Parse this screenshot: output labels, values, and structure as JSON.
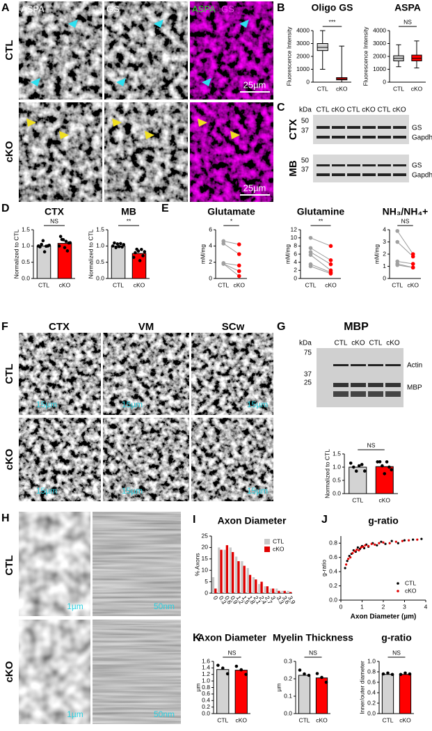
{
  "panels": {
    "A": {
      "label": "A",
      "rows": [
        "CTL",
        "cKO"
      ],
      "channels": [
        "ASPA",
        "GS"
      ],
      "merge": [
        "ASPA",
        "GS"
      ],
      "scale_bars": [
        "25µm",
        "25µm"
      ]
    },
    "B": {
      "label": "B",
      "charts": [
        {
          "type": "box",
          "title": "Oligo GS",
          "y_label": "Fluorescence Intensity",
          "categories": [
            "CTL",
            "cKO"
          ],
          "ylim": [
            0,
            4000
          ],
          "yticks": [
            0,
            1000,
            2000,
            3000,
            4000
          ],
          "significance": "***",
          "series": [
            {
              "color": "#d3d3d3",
              "min": 1000,
              "q1": 2450,
              "median": 2700,
              "q3": 3000,
              "max": 4000
            },
            {
              "color": "#ff0000",
              "min": 0,
              "q1": 180,
              "median": 250,
              "q3": 350,
              "max": 2800
            }
          ]
        },
        {
          "type": "box",
          "title": "ASPA",
          "y_label": "Fluorescence Intensity",
          "categories": [
            "CTL",
            "cKO"
          ],
          "ylim": [
            0,
            4000
          ],
          "yticks": [
            0,
            1000,
            2000,
            3000,
            4000
          ],
          "significance": "NS",
          "series": [
            {
              "color": "#d3d3d3",
              "min": 1200,
              "q1": 1650,
              "median": 1850,
              "q3": 2050,
              "max": 2900
            },
            {
              "color": "#ff0000",
              "min": 1100,
              "q1": 1650,
              "median": 1850,
              "q3": 2100,
              "max": 3200
            }
          ]
        }
      ]
    },
    "C": {
      "label": "C",
      "unit": "kDa",
      "lanes": [
        "CTL",
        "cKO",
        "CTL",
        "cKO",
        "CTL",
        "cKO"
      ],
      "blots": [
        {
          "region": "CTX",
          "markers": [
            "50",
            "37"
          ],
          "bands": [
            "GS",
            "Gapdh"
          ]
        },
        {
          "region": "MB",
          "markers": [
            "50",
            "37"
          ],
          "bands": [
            "GS",
            "Gapdh"
          ]
        }
      ]
    },
    "D": {
      "label": "D",
      "charts": [
        {
          "type": "bar",
          "title": "CTX",
          "y_label": "Normalized to CTL",
          "categories": [
            "CTL",
            "cKO"
          ],
          "colors": [
            "#d3d3d3",
            "#ff0000"
          ],
          "values": [
            1.0,
            1.08
          ],
          "significance": "NS",
          "points": [
            [
              1.0,
              0.93,
              1.05,
              1.12,
              0.82,
              0.95,
              1.0,
              0.98
            ],
            [
              1.0,
              1.25,
              1.2,
              1.15,
              0.95,
              1.1,
              0.85,
              1.05,
              1.1
            ]
          ],
          "ylim": [
            0,
            1.5
          ],
          "yticks": [
            {
              "value": 0,
              "label": "0.0"
            },
            0.5,
            {
              "value": 1,
              "label": "1.0"
            },
            1.5
          ]
        },
        {
          "type": "bar",
          "title": "MB",
          "y_label": "Normalized to CTL",
          "categories": [
            "CTL",
            "cKO"
          ],
          "colors": [
            "#d3d3d3",
            "#ff0000"
          ],
          "values": [
            1.0,
            0.77
          ],
          "significance": "**",
          "points": [
            [
              1.0,
              1.05,
              0.95,
              1.02,
              0.98,
              1.03,
              0.97,
              1.0
            ],
            [
              0.65,
              0.75,
              0.9,
              0.8,
              0.55,
              0.85,
              0.7,
              0.78
            ]
          ],
          "ylim": [
            0,
            1.5
          ],
          "yticks": [
            {
              "value": 0,
              "label": "0.0"
            },
            0.5,
            {
              "value": 1,
              "label": "1.0"
            },
            1.5
          ]
        }
      ]
    },
    "E": {
      "label": "E",
      "charts": [
        {
          "type": "paired",
          "title": "Glutamate",
          "y_label": "mM/mg",
          "categories": [
            "CTL",
            "cKO"
          ],
          "colors": [
            "#a0a0a0",
            "#ff0000"
          ],
          "significance": "*",
          "ctl": [
            4.6,
            4.3,
            1.9,
            1.8,
            1.8
          ],
          "cko": [
            4.2,
            3.0,
            1.6,
            0.9,
            0.3
          ],
          "ylim": [
            0,
            6
          ],
          "yticks": [
            0,
            2,
            4,
            6
          ]
        },
        {
          "type": "paired",
          "title": "Glutamine",
          "y_label": "mM/mg",
          "categories": [
            "CTL",
            "cKO"
          ],
          "colors": [
            "#a0a0a0",
            "#ff0000"
          ],
          "significance": "**",
          "ctl": [
            10,
            7.5,
            6.5,
            5.8,
            3.5,
            3.0
          ],
          "cko": [
            8,
            4.5,
            3.5,
            2.0,
            1.5,
            1.2
          ],
          "ylim": [
            0,
            12
          ],
          "yticks": [
            0,
            2,
            4,
            6,
            8,
            10,
            12
          ]
        },
        {
          "type": "paired",
          "title": "NH₃/NH₄+",
          "y_label": "mM/mg",
          "categories": [
            "CTL",
            "cKO"
          ],
          "colors": [
            "#a0a0a0",
            "#ff0000"
          ],
          "significance": "NS",
          "ctl": [
            3.9,
            3.0,
            1.4,
            1.2,
            1.1
          ],
          "cko": [
            2.0,
            1.8,
            1.2,
            0.9,
            0.9
          ],
          "ylim": [
            0,
            4
          ],
          "yticks": [
            0,
            1,
            2,
            3,
            4
          ]
        }
      ]
    },
    "F": {
      "label": "F",
      "columns": [
        "CTX",
        "VM",
        "SCw"
      ],
      "rows": [
        "CTL",
        "cKO"
      ],
      "scale_bars": [
        "15µm",
        "15µm",
        "15µm",
        "15µm",
        "15µm",
        "15µm"
      ]
    },
    "G": {
      "label": "G",
      "title": "MBP",
      "unit": "kDa",
      "lanes": [
        "CTL",
        "cKO",
        "CTL",
        "cKO"
      ],
      "markers": [
        "75",
        "37",
        "25"
      ],
      "bands": [
        "Actin",
        "MBP"
      ],
      "chart": {
        "type": "bar",
        "y_label": "Normalized to CTL",
        "categories": [
          "CTL",
          "cKO"
        ],
        "colors": [
          "#d3d3d3",
          "#ff0000"
        ],
        "values": [
          1.0,
          1.02
        ],
        "significance": "NS",
        "points": [
          [
            1.15,
            0.95,
            0.85,
            1.0,
            1.1,
            0.8
          ],
          [
            1.2,
            1.15,
            1.05,
            0.7,
            1.2,
            0.95,
            0.9
          ]
        ],
        "ylim": [
          0,
          1.5
        ],
        "yticks": [
          {
            "value": 0,
            "label": "0.0"
          },
          0.5,
          {
            "value": 1,
            "label": "1.0"
          },
          1.5
        ]
      }
    },
    "H": {
      "label": "H",
      "rows": [
        "CTL",
        "cKO"
      ],
      "scale_bars": [
        "1µm",
        "50nm",
        "1µm",
        "50nm"
      ]
    },
    "I": {
      "label": "I",
      "chart": {
        "type": "hist",
        "title": "Axon Diameter",
        "y_label": "% Axons",
        "categories": [
          "0",
          "0.3",
          "0.6",
          "0.9",
          "1.2",
          "1.5",
          "1.8",
          "2.1",
          "2.4",
          "2.7",
          "3",
          "3.3",
          "3.6",
          "3.9"
        ],
        "series": [
          {
            "name": "CTL",
            "color": "#c8c8c8",
            "values": [
              7,
              20,
              19,
              20,
              16,
              14,
              11,
              7,
              4,
              3,
              2,
              2,
              1,
              1
            ]
          },
          {
            "name": "cKO",
            "color": "#e00000",
            "values": [
              2,
              19,
              21,
              18,
              14,
              12,
              8,
              6,
              5,
              3,
              2,
              1,
              1,
              0.5
            ]
          }
        ],
        "ylim": [
          0,
          25
        ],
        "yticks": [
          0,
          5,
          10,
          15,
          20,
          25
        ]
      }
    },
    "J": {
      "label": "J",
      "chart": {
        "type": "scatter",
        "title": "g-ratio",
        "y_label": "g-ratio",
        "x_label": "Axon Diameter (µm)",
        "series": [
          {
            "name": "CTL",
            "color": "#000000",
            "x": [
              0.2,
              0.3,
              0.4,
              0.5,
              0.6,
              0.7,
              0.8,
              0.9,
              1.0,
              1.1,
              1.2,
              1.3,
              1.5,
              1.7,
              1.9,
              2.1,
              2.4,
              2.7,
              3.0,
              3.4,
              3.8
            ],
            "y": [
              0.45,
              0.55,
              0.62,
              0.65,
              0.7,
              0.68,
              0.74,
              0.72,
              0.76,
              0.73,
              0.78,
              0.75,
              0.8,
              0.77,
              0.82,
              0.79,
              0.83,
              0.8,
              0.84,
              0.85,
              0.86
            ]
          },
          {
            "name": "cKO",
            "color": "#e00000",
            "x": [
              0.25,
              0.35,
              0.45,
              0.55,
              0.65,
              0.75,
              0.85,
              0.95,
              1.05,
              1.15,
              1.3,
              1.45,
              1.6,
              1.8,
              2.0,
              2.3,
              2.6,
              2.9,
              3.2,
              3.6
            ],
            "y": [
              0.5,
              0.58,
              0.6,
              0.66,
              0.69,
              0.71,
              0.7,
              0.74,
              0.75,
              0.77,
              0.76,
              0.79,
              0.78,
              0.8,
              0.81,
              0.8,
              0.82,
              0.83,
              0.84,
              0.85
            ]
          }
        ],
        "xlim": [
          0,
          4
        ],
        "xticks": [
          0,
          1,
          2,
          3,
          4
        ],
        "ylim": [
          0,
          0.9
        ],
        "yticks": [
          {
            "value": 0,
            "label": "0.0"
          },
          0.2,
          0.4,
          0.6,
          0.8
        ]
      }
    },
    "K": {
      "label": "K",
      "charts": [
        {
          "type": "bar",
          "title": "Axon Diameter",
          "y_label": "µm",
          "categories": [
            "CTL",
            "cKO"
          ],
          "colors": [
            "#d3d3d3",
            "#ff0000"
          ],
          "values": [
            1.35,
            1.33
          ],
          "significance": "NS",
          "points": [
            [
              1.48,
              1.35,
              1.22
            ],
            [
              1.45,
              1.3,
              1.2
            ]
          ],
          "ylim": [
            0,
            1.6
          ],
          "yticks": [
            {
              "value": 0,
              "label": "0.0"
            },
            0.2,
            0.4,
            0.6,
            0.8,
            {
              "value": 1,
              "label": "1.0"
            },
            1.2,
            1.4,
            1.6
          ]
        },
        {
          "type": "bar",
          "title": "Myelin Thickness",
          "y_label": "µm",
          "categories": [
            "CTL",
            "cKO"
          ],
          "colors": [
            "#d3d3d3",
            "#ff0000"
          ],
          "values": [
            0.22,
            0.205
          ],
          "significance": "NS",
          "points": [
            [
              0.25,
              0.22,
              0.22
            ],
            [
              0.23,
              0.2,
              0.18
            ]
          ],
          "ylim": [
            0,
            0.3
          ],
          "yticks": [
            {
              "value": 0,
              "label": "0.0"
            },
            0.1,
            0.2,
            0.3
          ]
        },
        {
          "type": "bar",
          "title": "g-ratio",
          "y_label": "Inner/outer diameter",
          "categories": [
            "CTL",
            "cKO"
          ],
          "colors": [
            "#d3d3d3",
            "#ff0000"
          ],
          "values": [
            0.75,
            0.75
          ],
          "significance": "NS",
          "points": [
            [
              0.76,
              0.75,
              0.75
            ],
            [
              0.75,
              0.75,
              0.76
            ]
          ],
          "ylim": [
            0,
            1
          ],
          "yticks": [
            {
              "value": 0,
              "label": "0.0"
            },
            0.2,
            0.4,
            0.6,
            0.8,
            {
              "value": 1,
              "label": "1.0"
            }
          ]
        }
      ]
    }
  }
}
